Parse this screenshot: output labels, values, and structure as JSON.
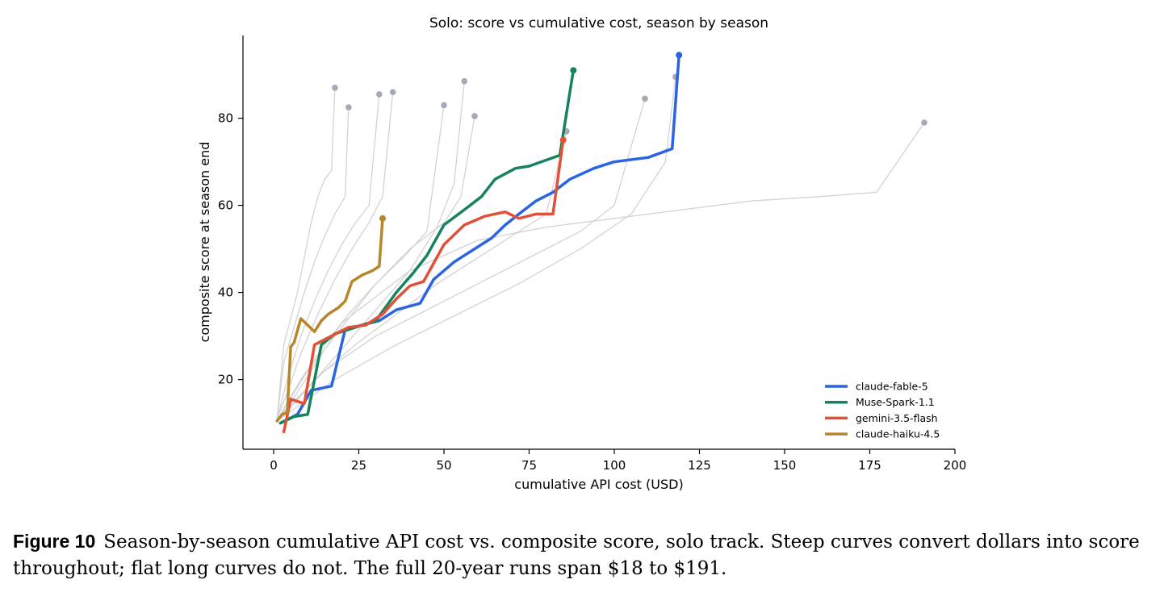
{
  "chart_data": {
    "type": "line",
    "title": "Solo: score vs cumulative cost, season by season",
    "xlabel": "cumulative API cost (USD)",
    "ylabel": "composite score at season end",
    "xlim": [
      -9,
      200
    ],
    "ylim": [
      4,
      99
    ],
    "xticks": [
      0,
      25,
      50,
      75,
      100,
      125,
      150,
      175,
      200
    ],
    "yticks": [
      20,
      40,
      60,
      80
    ],
    "legend_position": "lower-right",
    "grid": false,
    "colors": {
      "claude-fable-5": "#2a64e0",
      "Muse-Spark-1.1": "#16845a",
      "gemini-3.5-flash": "#e05138",
      "claude-haiku-4.5": "#b8862a",
      "background_runs": "#d3d3d3",
      "background_endpoints": "#a3aab5"
    },
    "series": [
      {
        "name": "claude-fable-5",
        "x": [
          2,
          7,
          11,
          17,
          21,
          26,
          31,
          36,
          43,
          47,
          53,
          60,
          64,
          68,
          72,
          77,
          82,
          87,
          94,
          100,
          110,
          117,
          119
        ],
        "y": [
          10,
          12,
          17.5,
          18.5,
          31.5,
          32.5,
          33.5,
          36,
          37.5,
          43,
          47,
          50.5,
          52.5,
          55.5,
          58,
          61,
          63,
          66,
          68.5,
          70,
          71,
          73,
          94.5
        ]
      },
      {
        "name": "Muse-Spark-1.1",
        "x": [
          2,
          6,
          10,
          14,
          18,
          24,
          30,
          36,
          41,
          45,
          50,
          56,
          61,
          65,
          71,
          75,
          84,
          88
        ],
        "y": [
          10,
          11.5,
          12,
          28,
          30.5,
          32,
          33.5,
          40,
          44.5,
          48.5,
          55.5,
          59,
          62,
          66,
          68.5,
          69,
          71.5,
          91
        ]
      },
      {
        "name": "gemini-3.5-flash",
        "x": [
          3,
          5,
          9,
          12,
          17,
          22,
          27,
          32,
          36,
          40,
          44,
          50,
          56,
          62,
          68,
          72,
          77,
          82,
          85
        ],
        "y": [
          8,
          15.5,
          14.5,
          28,
          30,
          32,
          32.5,
          35,
          38.5,
          41.5,
          42.5,
          51,
          55.5,
          57.5,
          58.5,
          57,
          58,
          58,
          75
        ]
      },
      {
        "name": "claude-haiku-4.5",
        "x": [
          1,
          2.5,
          4,
          5,
          6,
          8,
          10,
          12,
          14,
          16,
          19,
          21,
          23,
          26,
          29,
          31,
          32
        ],
        "y": [
          10.5,
          12,
          12.5,
          27.5,
          28.5,
          34,
          32.5,
          31,
          33.5,
          35,
          36.5,
          38,
          42.5,
          44,
          45,
          46,
          57
        ]
      }
    ],
    "background_runs": [
      {
        "x": [
          1,
          3,
          5,
          7,
          9,
          11,
          13,
          15,
          17,
          18
        ],
        "y": [
          11,
          28,
          34,
          40,
          48,
          56,
          62,
          66,
          68,
          87
        ]
      },
      {
        "x": [
          1,
          3,
          6,
          9,
          12,
          15,
          18,
          21,
          22
        ],
        "y": [
          11,
          24,
          32,
          40,
          47,
          53,
          58,
          62,
          82.5
        ]
      },
      {
        "x": [
          1,
          4,
          8,
          12,
          16,
          20,
          24,
          28,
          31
        ],
        "y": [
          11,
          20,
          30,
          38,
          45,
          51,
          56,
          60,
          85.5
        ]
      },
      {
        "x": [
          1,
          4,
          8,
          13,
          18,
          23,
          28,
          32,
          35
        ],
        "y": [
          11,
          17,
          26,
          35,
          43,
          50,
          56,
          62,
          86
        ]
      },
      {
        "x": [
          2,
          8,
          15,
          22,
          30,
          38,
          45,
          50
        ],
        "y": [
          12,
          20,
          28,
          35,
          42,
          48,
          54,
          83
        ]
      },
      {
        "x": [
          2,
          10,
          20,
          30,
          40,
          48,
          53,
          56
        ],
        "y": [
          11,
          18,
          27,
          36,
          45,
          55,
          65,
          88.5
        ]
      },
      {
        "x": [
          2,
          10,
          20,
          30,
          40,
          50,
          55,
          59
        ],
        "y": [
          12,
          22,
          32,
          42,
          50,
          56,
          62,
          80.5
        ]
      },
      {
        "x": [
          2,
          12,
          24,
          36,
          48,
          60,
          72,
          80,
          86
        ],
        "y": [
          11,
          20,
          28,
          35,
          42,
          48,
          54,
          58,
          77
        ]
      },
      {
        "x": [
          2,
          15,
          30,
          45,
          60,
          75,
          90,
          100,
          109
        ],
        "y": [
          12,
          22,
          30,
          36,
          42,
          48,
          54,
          60,
          84.5
        ]
      },
      {
        "x": [
          2,
          18,
          36,
          54,
          72,
          90,
          105,
          115,
          118
        ],
        "y": [
          11,
          20,
          28,
          35,
          42,
          50,
          58,
          70,
          89.5
        ]
      },
      {
        "x": [
          2,
          20,
          40,
          60,
          80,
          100,
          120,
          140,
          160,
          177,
          191
        ],
        "y": [
          11,
          33,
          45,
          52,
          55,
          57,
          59,
          61,
          62,
          63,
          79
        ]
      }
    ]
  },
  "caption": {
    "label": "Figure 10",
    "text": "Season-by-season cumulative API cost vs. composite score, solo track. Steep curves convert dollars into score throughout; flat long curves do not. The full 20-year runs span $18 to $191."
  }
}
